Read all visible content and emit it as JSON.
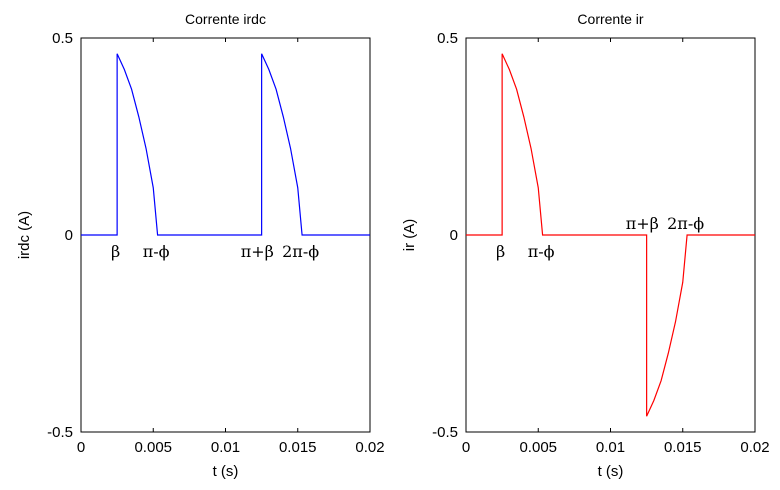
{
  "chart_data": [
    {
      "type": "line",
      "title": "Corrente irdc",
      "xlabel": "t (s)",
      "ylabel": "irdc (A)",
      "xlim": [
        0,
        0.02
      ],
      "ylim": [
        -0.5,
        0.5
      ],
      "xticks": [
        "0",
        "0.005",
        "0.01",
        "0.015",
        "0.02"
      ],
      "yticks": [
        "-0.5",
        "0",
        "0.5"
      ],
      "grid": false,
      "series": [
        {
          "color": "#0000ff",
          "x": [
            0,
            0.0025,
            0.0025,
            0.003,
            0.0035,
            0.004,
            0.0045,
            0.005,
            0.0053,
            0.0125,
            0.0125,
            0.013,
            0.0135,
            0.014,
            0.0145,
            0.015,
            0.0153,
            0.02
          ],
          "y": [
            0,
            0,
            0.46,
            0.42,
            0.37,
            0.3,
            0.22,
            0.12,
            0,
            0,
            0.46,
            0.42,
            0.37,
            0.3,
            0.22,
            0.12,
            0,
            0
          ]
        }
      ],
      "annotations": [
        {
          "text": "β",
          "x": 0.0024,
          "y": -0.04
        },
        {
          "text": "π-ϕ",
          "x": 0.0052,
          "y": -0.04
        },
        {
          "text": "π+β",
          "x": 0.0122,
          "y": -0.04
        },
        {
          "text": "2π-ϕ",
          "x": 0.0152,
          "y": -0.04
        }
      ]
    },
    {
      "type": "line",
      "title": "Corrente ir",
      "xlabel": "t (s)",
      "ylabel": "ir (A)",
      "xlim": [
        0,
        0.02
      ],
      "ylim": [
        -0.5,
        0.5
      ],
      "xticks": [
        "0",
        "0.005",
        "0.01",
        "0.015",
        "0.02"
      ],
      "yticks": [
        "-0.5",
        "0",
        "0.5"
      ],
      "grid": false,
      "series": [
        {
          "color": "#ff0000",
          "x": [
            0,
            0.0025,
            0.0025,
            0.003,
            0.0035,
            0.004,
            0.0045,
            0.005,
            0.0053,
            0.0125,
            0.0125,
            0.013,
            0.0135,
            0.014,
            0.0145,
            0.015,
            0.0153,
            0.02
          ],
          "y": [
            0,
            0,
            0.46,
            0.42,
            0.37,
            0.3,
            0.22,
            0.12,
            0,
            0,
            -0.46,
            -0.42,
            -0.37,
            -0.3,
            -0.22,
            -0.12,
            0,
            0
          ]
        }
      ],
      "annotations": [
        {
          "text": "β",
          "x": 0.0024,
          "y": -0.04
        },
        {
          "text": "π-ϕ",
          "x": 0.0052,
          "y": -0.04
        },
        {
          "text": "π+β",
          "x": 0.0122,
          "y": 0.03
        },
        {
          "text": "2π-ϕ",
          "x": 0.0152,
          "y": 0.03
        }
      ]
    }
  ]
}
